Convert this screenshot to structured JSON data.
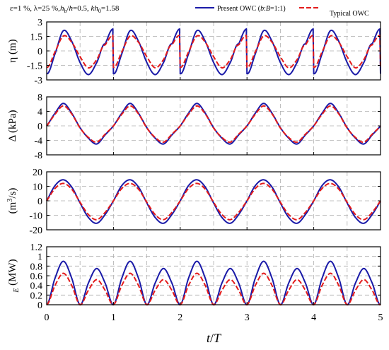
{
  "header": {
    "params": "ε=1 %, λ=25 %,h_b/h=0.5, kh_0=1.58",
    "params_html": "ε=1 %, λ=25 %,<i>h</i><sub>b</sub>/<i>h</i>=0.5, <i>kh</i><sub>0</sub>=1.58",
    "legend_present": "Present OWC (b:B=1:1)",
    "legend_present_html": "Present OWC (<i>b</i>:<i>B</i>=1:1)",
    "legend_typical": "Typical OWC"
  },
  "colors": {
    "present": "#1a1aa8",
    "typical": "#e31b1b",
    "grid": "#b0b0b0"
  },
  "chart_data": [
    {
      "type": "line",
      "ylabel": "η (m)",
      "ylabel_html": "η (m)",
      "ylim": [
        -3,
        3
      ],
      "yticks": [
        -3,
        -1.5,
        0,
        1.5,
        3
      ],
      "ytick_labels": [
        "-3",
        "-1.5",
        "0",
        "1.5",
        "3"
      ],
      "xlim": [
        0,
        5
      ],
      "xticks": [
        0,
        1,
        2,
        3,
        4,
        5
      ],
      "grid": true,
      "series": [
        {
          "name": "Present OWC (b:B=1:1)",
          "x": [
            0,
            0.125,
            0.25,
            0.375,
            0.5,
            0.625,
            0.75,
            0.875,
            1.0
          ],
          "values": [
            -2.35,
            -0.3,
            2.1,
            1.0,
            -1.2,
            -2.45,
            -1.2,
            0.7,
            2.25
          ]
        },
        {
          "name": "Typical OWC",
          "x": [
            0,
            0.125,
            0.25,
            0.375,
            0.5,
            0.625,
            0.75,
            0.875,
            1.0
          ],
          "values": [
            -1.7,
            -0.1,
            1.55,
            0.9,
            -0.6,
            -1.75,
            -0.9,
            0.6,
            1.6
          ]
        }
      ]
    },
    {
      "type": "line",
      "ylabel": "ΔP (kPa)",
      "ylabel_html": "Δ<i>P</i> (kPa)",
      "ylim": [
        -8,
        8
      ],
      "yticks": [
        -8,
        -4,
        0,
        4,
        8
      ],
      "ytick_labels": [
        "-8",
        "-4",
        "0",
        "4",
        "8"
      ],
      "xlim": [
        0,
        5
      ],
      "xticks": [
        0,
        1,
        2,
        3,
        4,
        5
      ],
      "grid": true,
      "series": [
        {
          "name": "Present OWC (b:B=1:1)",
          "x": [
            0,
            0.125,
            0.25,
            0.375,
            0.5,
            0.625,
            0.75,
            0.875,
            1.0
          ],
          "values": [
            0,
            3.5,
            6.2,
            3.5,
            -0.5,
            -3.4,
            -5.0,
            -2.5,
            0
          ]
        },
        {
          "name": "Typical OWC",
          "x": [
            0,
            0.125,
            0.25,
            0.375,
            0.5,
            0.625,
            0.75,
            0.875,
            1.0
          ],
          "values": [
            0,
            3.2,
            5.5,
            3.3,
            -0.6,
            -3.2,
            -4.5,
            -2.3,
            0
          ]
        }
      ]
    },
    {
      "type": "line",
      "ylabel": "q (m3/s)",
      "ylabel_html": "<i>q</i> (m<tspan dy=\"-5\" font-size=\"10\">3</tspan><tspan dy=\"5\">/s)</tspan>",
      "ylim": [
        -20,
        20
      ],
      "yticks": [
        -20,
        -10,
        0,
        10,
        20
      ],
      "ytick_labels": [
        "-20",
        "-10",
        "0",
        "10",
        "20"
      ],
      "xlim": [
        0,
        5
      ],
      "xticks": [
        0,
        1,
        2,
        3,
        4,
        5
      ],
      "grid": true,
      "series": [
        {
          "name": "Present OWC (b:B=1:1)",
          "x": [
            0,
            0.125,
            0.25,
            0.375,
            0.5,
            0.625,
            0.75,
            0.875,
            1.0
          ],
          "values": [
            0,
            10.5,
            14.5,
            9.5,
            -1.5,
            -11.5,
            -15.5,
            -9.5,
            0
          ]
        },
        {
          "name": "Typical OWC",
          "x": [
            0,
            0.125,
            0.25,
            0.375,
            0.5,
            0.625,
            0.75,
            0.875,
            1.0
          ],
          "values": [
            0,
            8.5,
            12.0,
            8.0,
            -1.0,
            -9.5,
            -13.0,
            -8.0,
            0
          ]
        }
      ]
    },
    {
      "type": "line",
      "ylabel": "P_E (MW)",
      "ylabel_html": "<i>P</i><tspan dy=\"4\" font-size=\"10\"><tspan font-style=\"italic\">E</tspan></tspan><tspan dy=\"-4\"> (MW)</tspan>",
      "ylim": [
        0,
        1.2
      ],
      "yticks": [
        0,
        0.2,
        0.4,
        0.6,
        0.8,
        1,
        1.2
      ],
      "ytick_labels": [
        "0",
        "0.2",
        "0.4",
        "0.6",
        "0.8",
        "1",
        "1.2"
      ],
      "xlim": [
        0,
        5
      ],
      "xticks": [
        0,
        1,
        2,
        3,
        4,
        5
      ],
      "xtick_labels": [
        "0",
        "1",
        "2",
        "3",
        "4",
        "5"
      ],
      "xlabel": "t/T",
      "xlabel_html": "<i>t</i>/<i>T</i>",
      "grid": true,
      "series": [
        {
          "name": "Present OWC (b:B=1:1)",
          "x": [
            0,
            0.125,
            0.25,
            0.375,
            0.5,
            0.625,
            0.75,
            0.875,
            1.0
          ],
          "values": [
            0,
            0.55,
            0.9,
            0.55,
            0,
            0.45,
            0.75,
            0.45,
            0
          ]
        },
        {
          "name": "Typical OWC",
          "x": [
            0,
            0.125,
            0.25,
            0.375,
            0.5,
            0.625,
            0.75,
            0.875,
            1.0
          ],
          "values": [
            0,
            0.4,
            0.65,
            0.4,
            0,
            0.3,
            0.52,
            0.3,
            0
          ]
        }
      ]
    }
  ]
}
